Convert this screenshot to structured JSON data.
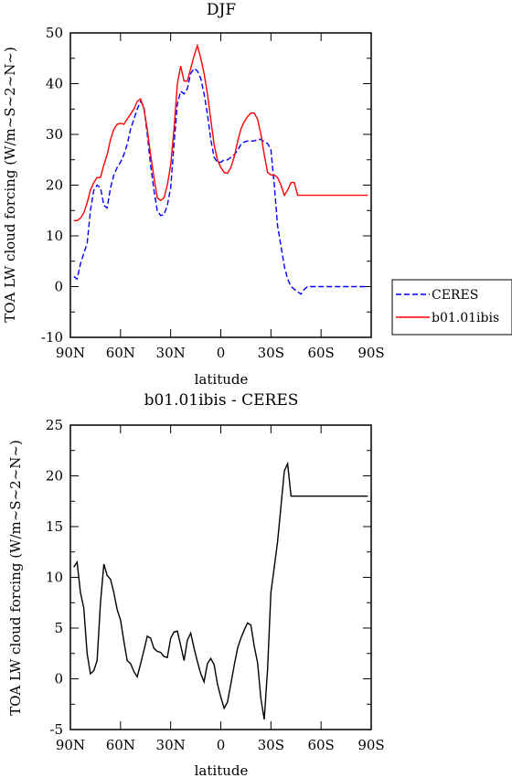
{
  "chart_data": [
    {
      "type": "line",
      "title": "DJF",
      "xlabel": "latitude",
      "ylabel": "TOA LW cloud forcing (W/m~S~2~N~)",
      "xlim": [
        90,
        -90
      ],
      "ylim": [
        -10,
        50
      ],
      "x_ticks": [
        {
          "value": 90,
          "label": "90N"
        },
        {
          "value": 60,
          "label": "60N"
        },
        {
          "value": 30,
          "label": "30N"
        },
        {
          "value": 0,
          "label": "0"
        },
        {
          "value": -30,
          "label": "30S"
        },
        {
          "value": -60,
          "label": "60S"
        },
        {
          "value": -90,
          "label": "90S"
        }
      ],
      "y_ticks": [
        -10,
        0,
        10,
        20,
        30,
        40,
        50
      ],
      "legend": {
        "position": "right-outside"
      },
      "series": [
        {
          "name": "CERES",
          "color": "#0000ff",
          "style": "dashed",
          "x": [
            88,
            86,
            84,
            82,
            80,
            78,
            76,
            74,
            72,
            70,
            68,
            66,
            64,
            62,
            60,
            58,
            56,
            54,
            52,
            50,
            48,
            46,
            44,
            42,
            40,
            38,
            36,
            34,
            32,
            30,
            28,
            26,
            24,
            22,
            20,
            18,
            16,
            14,
            12,
            10,
            8,
            6,
            4,
            2,
            0,
            -2,
            -4,
            -6,
            -8,
            -10,
            -12,
            -14,
            -16,
            -18,
            -20,
            -22,
            -24,
            -26,
            -28,
            -30,
            -32,
            -34,
            -36,
            -38,
            -40,
            -42,
            -44,
            -46,
            -48,
            -50,
            -52,
            -54,
            -56,
            -58,
            -60,
            -62,
            -64,
            -66,
            -68,
            -70,
            -72,
            -74,
            -76,
            -78,
            -80,
            -82,
            -84,
            -86,
            -88
          ],
          "y": [
            2,
            1.5,
            4.5,
            6.5,
            8.5,
            15,
            19,
            20,
            19.5,
            16,
            15.5,
            19.5,
            22,
            23.5,
            24.5,
            26,
            28,
            31,
            33,
            35,
            36.5,
            35.5,
            30,
            24,
            19,
            15,
            14,
            14.2,
            16,
            19.5,
            28,
            36,
            38.5,
            38,
            39,
            42,
            43,
            42.5,
            41,
            38,
            34,
            29,
            25.5,
            24.5,
            24.5,
            25,
            25,
            25.5,
            26,
            26.8,
            28,
            28.5,
            28.7,
            28.7,
            28.7,
            29,
            29,
            28.5,
            28.2,
            27,
            20,
            12,
            8,
            4,
            1.5,
            0,
            -0.5,
            -1,
            -1.5,
            -0.5,
            0,
            0,
            0,
            0,
            0,
            0,
            0,
            0,
            0,
            0,
            0,
            0,
            0,
            0,
            0,
            0,
            0,
            0,
            0
          ]
        },
        {
          "name": "b01.01ibis",
          "color": "#ff0000",
          "style": "solid",
          "x": [
            88,
            86,
            84,
            82,
            80,
            78,
            76,
            74,
            72,
            70,
            68,
            66,
            64,
            62,
            60,
            58,
            56,
            54,
            52,
            50,
            48,
            46,
            44,
            42,
            40,
            38,
            36,
            34,
            32,
            30,
            28,
            26,
            24,
            22,
            20,
            18,
            16,
            14,
            12,
            10,
            8,
            6,
            4,
            2,
            0,
            -2,
            -4,
            -6,
            -8,
            -10,
            -12,
            -14,
            -16,
            -18,
            -20,
            -22,
            -24,
            -26,
            -28,
            -30,
            -32,
            -34,
            -36,
            -38,
            -40,
            -42,
            -44,
            -46,
            -48,
            -50,
            -52,
            -54,
            -56,
            -58,
            -60,
            -62,
            -64,
            -66,
            -68,
            -70,
            -72,
            -74,
            -76,
            -78,
            -80,
            -82,
            -84,
            -86,
            -88
          ],
          "y": [
            13,
            13,
            13.5,
            14.5,
            16.5,
            19,
            20.5,
            21.5,
            21.5,
            24,
            26,
            29,
            31,
            32,
            32.2,
            32,
            33,
            34,
            35,
            36.5,
            37,
            35,
            31,
            26,
            21.5,
            17.5,
            17,
            17.5,
            20,
            24,
            31,
            40,
            43.5,
            40.5,
            40.5,
            43,
            45.5,
            47.5,
            45,
            42,
            38,
            33,
            28,
            25,
            23.5,
            22.5,
            22.3,
            23.5,
            25.5,
            28.5,
            31,
            32.5,
            33.5,
            34.2,
            34.2,
            33,
            30,
            26,
            22.5,
            22,
            22,
            21.5,
            20,
            18,
            19,
            20.5,
            20.5,
            18,
            18,
            18,
            18,
            18,
            18,
            18,
            18,
            18,
            18,
            18,
            18,
            18,
            18,
            18,
            18,
            18,
            18,
            18,
            18,
            18,
            18
          ]
        }
      ]
    },
    {
      "type": "line",
      "title": "b01.01ibis - CERES",
      "xlabel": "latitude",
      "ylabel": "TOA LW cloud forcing (W/m~S~2~N~)",
      "xlim": [
        90,
        -90
      ],
      "ylim": [
        -5,
        25
      ],
      "x_ticks": [
        {
          "value": 90,
          "label": "90N"
        },
        {
          "value": 60,
          "label": "60N"
        },
        {
          "value": 30,
          "label": "30N"
        },
        {
          "value": 0,
          "label": "0"
        },
        {
          "value": -30,
          "label": "30S"
        },
        {
          "value": -60,
          "label": "60S"
        },
        {
          "value": -90,
          "label": "90S"
        }
      ],
      "y_ticks": [
        -5,
        0,
        5,
        10,
        15,
        20,
        25
      ],
      "series": [
        {
          "color": "#000000",
          "style": "solid",
          "x": [
            88,
            86,
            84,
            82,
            80,
            78,
            76,
            74,
            72,
            70,
            68,
            66,
            64,
            62,
            60,
            58,
            56,
            54,
            52,
            50,
            48,
            46,
            44,
            42,
            40,
            38,
            36,
            34,
            32,
            30,
            28,
            26,
            24,
            22,
            20,
            18,
            16,
            14,
            12,
            10,
            8,
            6,
            4,
            2,
            0,
            -2,
            -4,
            -6,
            -8,
            -10,
            -12,
            -14,
            -16,
            -18,
            -20,
            -22,
            -24,
            -26,
            -28,
            -30,
            -32,
            -34,
            -36,
            -38,
            -40,
            -42,
            -44,
            -46,
            -48,
            -50,
            -52,
            -54,
            -56,
            -58,
            -60,
            -62,
            -64,
            -66,
            -68,
            -70,
            -72,
            -74,
            -76,
            -78,
            -80,
            -82,
            -84,
            -86,
            -88
          ],
          "y": [
            11,
            11.5,
            8.5,
            7,
            2.5,
            0.5,
            0.8,
            1.8,
            7.5,
            11.3,
            10.2,
            9.8,
            8.5,
            6.8,
            5.8,
            3.7,
            1.8,
            1.5,
            0.7,
            0.2,
            1.5,
            2.8,
            4.2,
            4,
            3,
            2.7,
            2.6,
            2.2,
            2.1,
            4,
            4.6,
            4.7,
            3.3,
            1.8,
            3.8,
            4.5,
            3,
            1.7,
            0.5,
            -0.3,
            1.5,
            2,
            1.4,
            -0.5,
            -1.8,
            -2.9,
            -2.3,
            -0.5,
            1.3,
            3,
            4,
            4.8,
            5.5,
            5.3,
            3.2,
            1.6,
            -2,
            -4,
            1,
            8.5,
            11,
            13.5,
            17,
            20.5,
            21.2,
            18,
            18,
            18,
            18,
            18,
            18,
            18,
            18,
            18,
            18,
            18,
            18,
            18,
            18,
            18,
            18,
            18,
            18,
            18,
            18,
            18,
            18,
            18,
            18
          ]
        }
      ]
    }
  ]
}
